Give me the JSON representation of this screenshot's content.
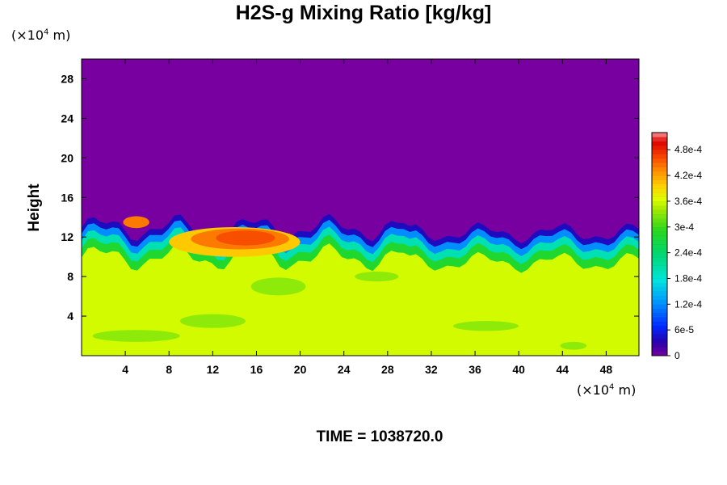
{
  "chart_data": {
    "type": "heatmap",
    "title": "H2S-g Mixing Ratio [kg/kg]",
    "xlabel": "",
    "ylabel": "Height",
    "x_unit": {
      "prefix": "(×10",
      "exp": "4",
      "suffix": " m)"
    },
    "y_unit": {
      "prefix": "(×10",
      "exp": "4",
      "suffix": " m)"
    },
    "xlim": [
      0,
      51
    ],
    "ylim": [
      0,
      30
    ],
    "x_ticks": [
      4,
      8,
      12,
      16,
      20,
      24,
      28,
      32,
      36,
      40,
      44,
      48
    ],
    "y_ticks": [
      4,
      8,
      12,
      16,
      20,
      24,
      28
    ],
    "colorbar": {
      "min": 0,
      "max": 0.00052,
      "labels": [
        "0",
        "6e-5",
        "1.2e-4",
        "1.8e-4",
        "2.4e-4",
        "3e-4",
        "3.6e-4",
        "4.2e-4",
        "4.8e-4"
      ],
      "label_values": [
        0,
        6e-05,
        0.00012,
        0.00018,
        0.00024,
        0.0003,
        0.00036,
        0.00042,
        0.00048
      ]
    },
    "fields": {
      "upper_value": 0,
      "lower_value": 0.00036,
      "interface_height_range": [
        10.5,
        15
      ],
      "high_concentration_region": {
        "x_range": [
          8,
          20
        ],
        "y_range": [
          10,
          13
        ],
        "value": 0.00046
      }
    }
  },
  "footer": {
    "time_text": "TIME = 1038720.0"
  }
}
